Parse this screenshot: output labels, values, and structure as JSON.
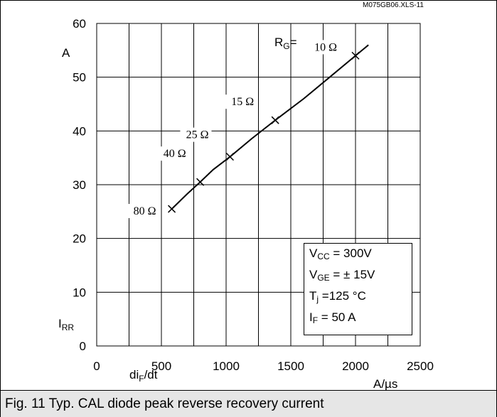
{
  "file_id": "M075GB06.XLS-11",
  "caption": "Fig. 11 Typ. CAL diode peak reverse recovery current",
  "axes": {
    "y_unit": "A",
    "y_symbol": "I",
    "y_symbol_sub": "RR",
    "x_unit": "A/µs",
    "x_symbol_prefix": "di",
    "x_symbol_sub": "F",
    "x_symbol_suffix": "/dt"
  },
  "rg_prefix": {
    "main": "R",
    "sub": "G",
    "suffix": "="
  },
  "conditions": [
    {
      "main": "V",
      "sub": "CC",
      "rest": " = 300V"
    },
    {
      "main": "V",
      "sub": "GE",
      "rest": " = ± 15V"
    },
    {
      "main": "T",
      "sub": "j",
      "rest": " =125 °C"
    },
    {
      "main": "I",
      "sub": "F",
      "rest": " = 50 A"
    }
  ],
  "chart_data": {
    "type": "line",
    "title": "",
    "xlabel": "diF/dt A/µs",
    "ylabel": "IRR A",
    "xlim": [
      0,
      2500
    ],
    "ylim": [
      0,
      60
    ],
    "x_ticks": [
      0,
      500,
      1000,
      1500,
      2000,
      2500
    ],
    "y_ticks": [
      0,
      10,
      20,
      30,
      40,
      50,
      60
    ],
    "grid": true,
    "legend": "none",
    "series": [
      {
        "x": [
          580,
          700,
          800,
          900,
          1030,
          1200,
          1380,
          1600,
          1800,
          2000,
          2100
        ],
        "y": [
          25.5,
          28.3,
          30.5,
          32.8,
          35.2,
          38.6,
          42.0,
          46.0,
          50.0,
          54.0,
          56.0
        ]
      }
    ],
    "markers": [
      {
        "label": "80 Ω",
        "x": 580,
        "y": 25.5
      },
      {
        "label": "40 Ω",
        "x": 800,
        "y": 30.5
      },
      {
        "label": "25 Ω",
        "x": 1030,
        "y": 35.2
      },
      {
        "label": "15 Ω",
        "x": 1380,
        "y": 42.0
      },
      {
        "label": "10 Ω",
        "x": 2000,
        "y": 54.0
      }
    ]
  }
}
